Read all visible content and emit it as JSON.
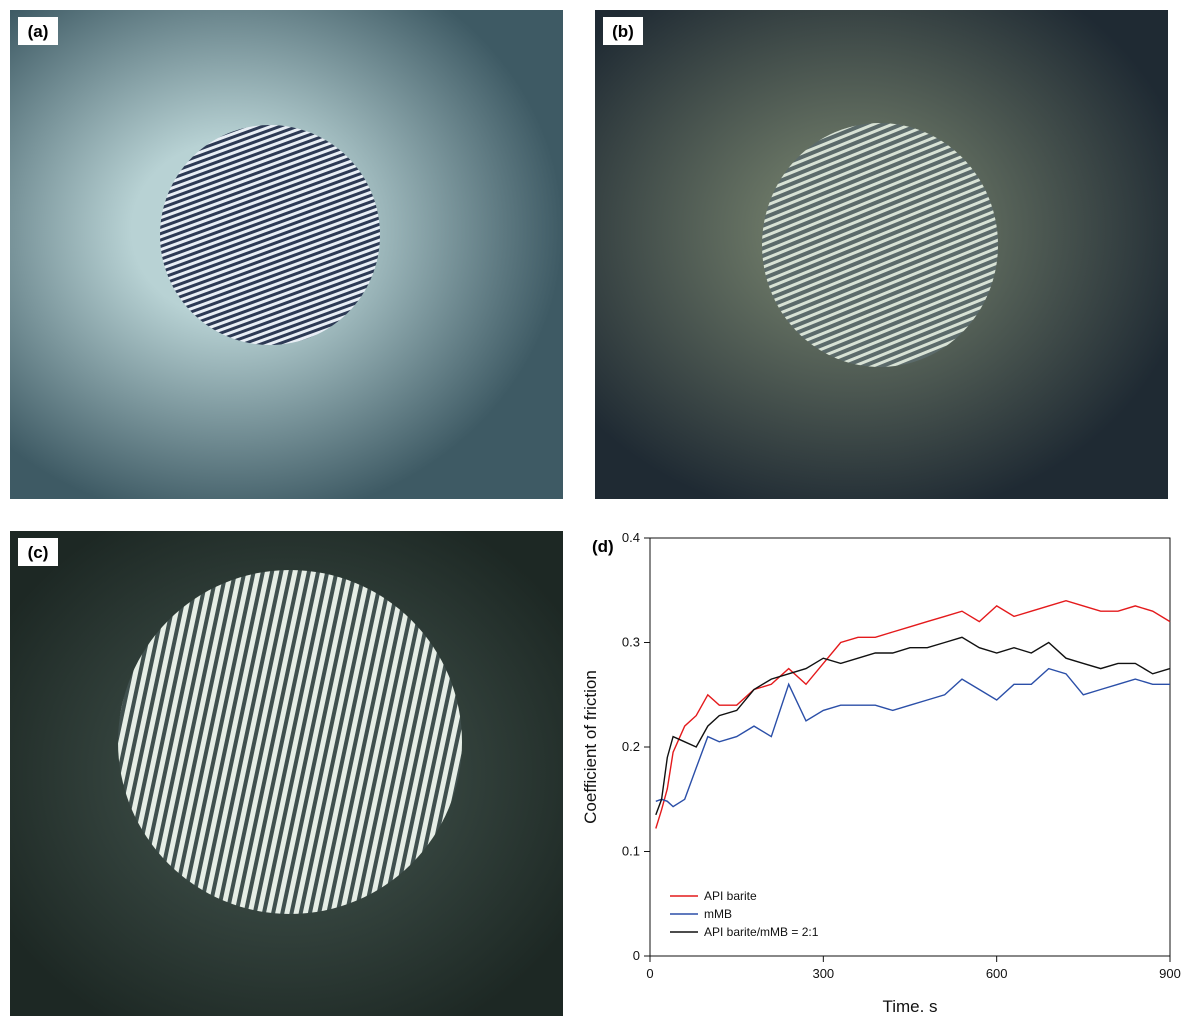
{
  "panels": {
    "a": "(a)",
    "b": "(b)",
    "c": "(c)"
  },
  "chart_data": {
    "type": "line",
    "panel_label": "(d)",
    "x_label": "Time. s",
    "y_label": "Coefficient of friction",
    "xlim": [
      0,
      900
    ],
    "xticks": [
      0,
      300,
      600,
      900
    ],
    "ylim": [
      0,
      0.4
    ],
    "yticks": [
      0,
      0.1,
      0.2,
      0.3,
      0.4
    ],
    "legend": "lower left",
    "x": [
      10,
      20,
      30,
      40,
      60,
      80,
      100,
      120,
      150,
      180,
      210,
      240,
      270,
      300,
      330,
      360,
      390,
      420,
      450,
      480,
      510,
      540,
      570,
      600,
      630,
      660,
      690,
      720,
      750,
      780,
      810,
      840,
      870,
      900
    ],
    "series": [
      {
        "name": "API barite",
        "color": "#e41a1c",
        "values": [
          0.122,
          0.14,
          0.16,
          0.195,
          0.22,
          0.23,
          0.25,
          0.24,
          0.24,
          0.255,
          0.26,
          0.275,
          0.26,
          0.28,
          0.3,
          0.305,
          0.305,
          0.31,
          0.315,
          0.32,
          0.325,
          0.33,
          0.32,
          0.335,
          0.325,
          0.33,
          0.335,
          0.34,
          0.335,
          0.33,
          0.33,
          0.335,
          0.33,
          0.32
        ]
      },
      {
        "name": "mMB",
        "color": "#2b4fa8",
        "values": [
          0.148,
          0.15,
          0.148,
          0.143,
          0.15,
          0.18,
          0.21,
          0.205,
          0.21,
          0.22,
          0.21,
          0.26,
          0.225,
          0.235,
          0.24,
          0.24,
          0.24,
          0.235,
          0.24,
          0.245,
          0.25,
          0.265,
          0.255,
          0.245,
          0.26,
          0.26,
          0.275,
          0.27,
          0.25,
          0.255,
          0.26,
          0.265,
          0.26,
          0.26
        ]
      },
      {
        "name": "API barite/mMB = 2:1",
        "color": "#111111",
        "values": [
          0.135,
          0.15,
          0.19,
          0.21,
          0.205,
          0.2,
          0.22,
          0.23,
          0.235,
          0.255,
          0.265,
          0.27,
          0.275,
          0.285,
          0.28,
          0.285,
          0.29,
          0.29,
          0.295,
          0.295,
          0.3,
          0.305,
          0.295,
          0.29,
          0.295,
          0.29,
          0.3,
          0.285,
          0.28,
          0.275,
          0.28,
          0.28,
          0.27,
          0.275
        ]
      }
    ]
  }
}
